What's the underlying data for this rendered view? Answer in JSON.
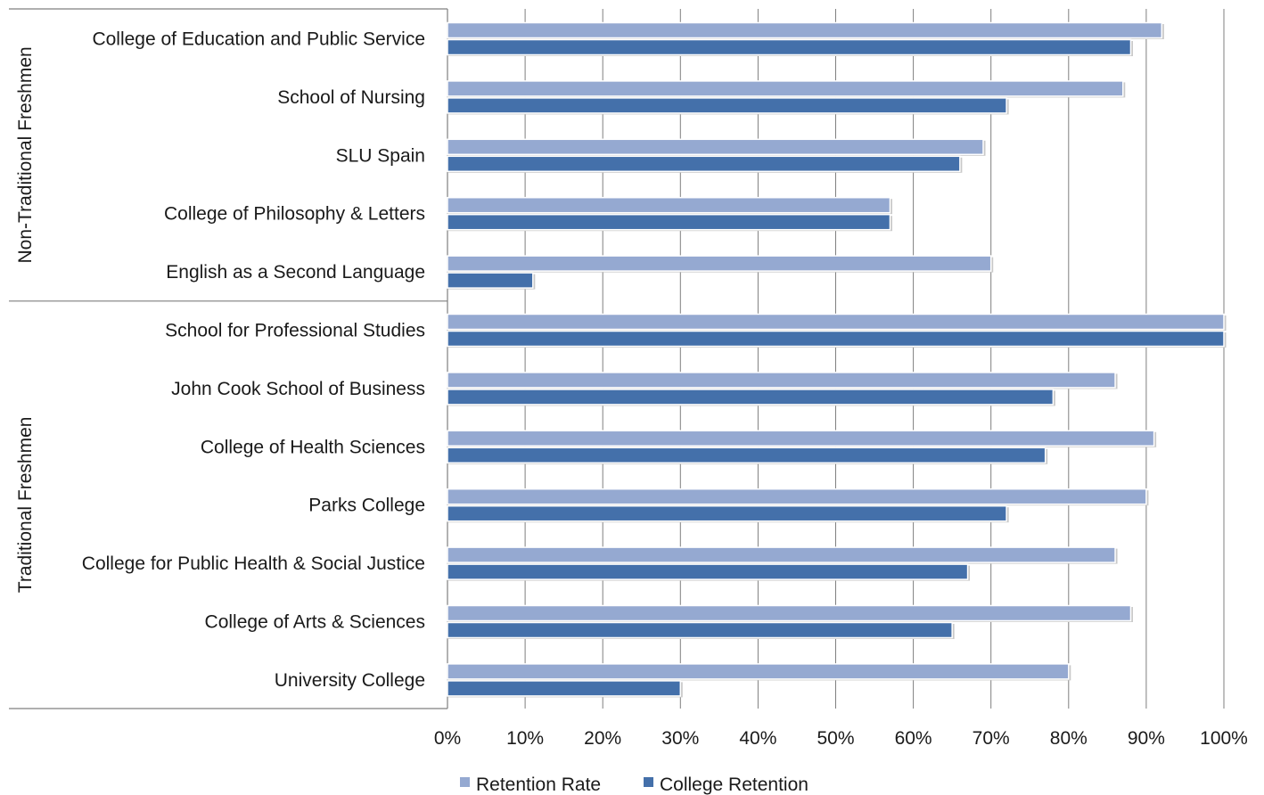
{
  "chart_data": {
    "type": "bar",
    "orientation": "horizontal",
    "groups": [
      {
        "name": "Non-Traditional Freshmen",
        "categories": [
          "College of Education and Public Service",
          "School of Nursing",
          "SLU Spain",
          "College of Philosophy & Letters",
          "English as a Second Language"
        ]
      },
      {
        "name": "Traditional Freshmen",
        "categories": [
          "School for Professional Studies",
          "John Cook School of Business",
          "College of Health Sciences",
          "Parks College",
          "College for Public Health & Social Justice",
          "College of Arts & Sciences",
          "University College"
        ]
      }
    ],
    "series": [
      {
        "name": "Retention Rate",
        "color": "#95a9d1",
        "values": [
          92,
          87,
          69,
          57,
          70,
          100,
          86,
          91,
          90,
          86,
          88,
          80
        ]
      },
      {
        "name": "College Retention",
        "color": "#4470aa",
        "values": [
          88,
          72,
          66,
          57,
          11,
          100,
          78,
          77,
          72,
          67,
          65,
          30
        ]
      }
    ],
    "xlim": [
      0,
      100
    ],
    "x_ticks": [
      "0%",
      "10%",
      "20%",
      "30%",
      "40%",
      "50%",
      "60%",
      "70%",
      "80%",
      "90%",
      "100%"
    ],
    "grid": true,
    "legend_position": "bottom"
  }
}
